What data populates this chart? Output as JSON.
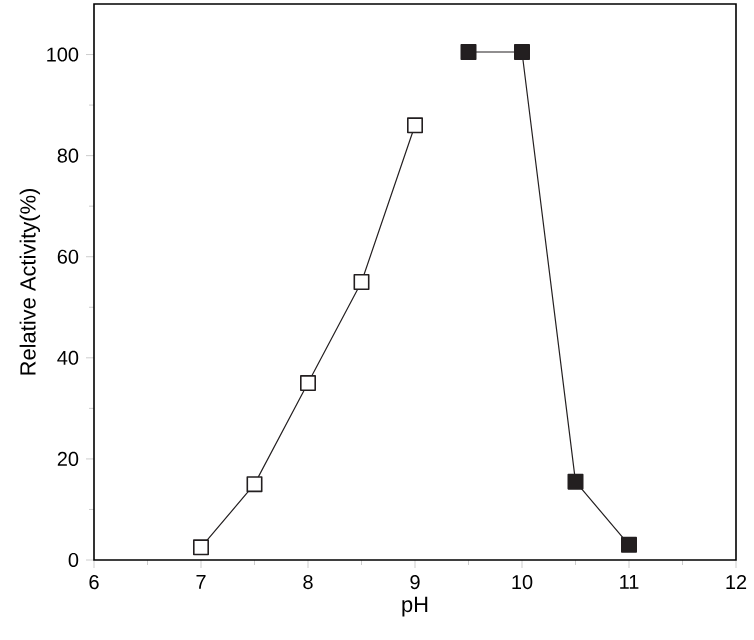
{
  "chart_data": {
    "type": "line",
    "xlabel": "pH",
    "ylabel": "Relative Activity(%)",
    "xlim": [
      6,
      12
    ],
    "ylim": [
      0,
      110
    ],
    "xticks": [
      6,
      7,
      8,
      9,
      10,
      11,
      12
    ],
    "yticks": [
      0,
      20,
      40,
      60,
      80,
      100
    ],
    "marker": "square",
    "line_style": "solid",
    "series": [
      {
        "color": "#ffffff",
        "x": [
          7,
          7.5,
          8,
          8.5,
          9
        ],
        "values": [
          2.5,
          15,
          35,
          55,
          86
        ]
      },
      {
        "color": "#231f20",
        "x": [
          9.5,
          10,
          10.5,
          11
        ],
        "values": [
          100.5,
          100.5,
          15.5,
          3
        ]
      }
    ]
  }
}
